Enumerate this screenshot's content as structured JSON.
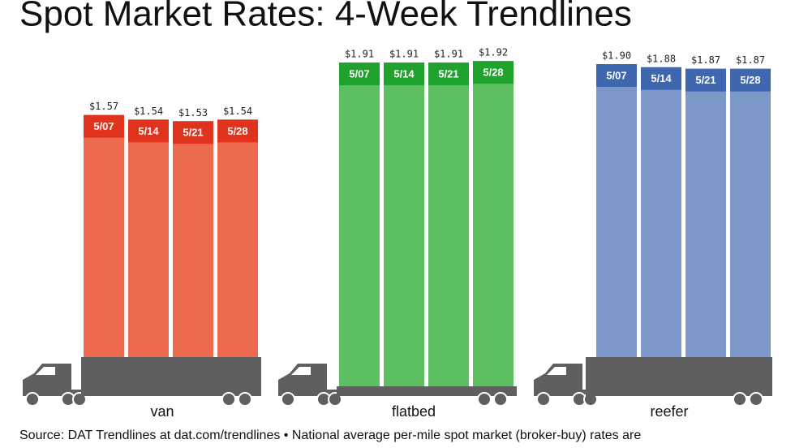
{
  "title": "Spot Market Rates: 4-Week Trendlines",
  "source": "Source: DAT Trendlines at dat.com/trendlines • National average per-mile spot market (broker-buy) rates are",
  "chart_data": [
    {
      "type": "bar",
      "title": "van",
      "categories": [
        "5/07",
        "5/14",
        "5/21",
        "5/28"
      ],
      "values": [
        1.57,
        1.54,
        1.53,
        1.54
      ],
      "value_labels": [
        "$1.57",
        "$1.54",
        "$1.53",
        "$1.54"
      ],
      "color": "#ec6a4e",
      "label_color": "#e0331d"
    },
    {
      "type": "bar",
      "title": "flatbed",
      "categories": [
        "5/07",
        "5/14",
        "5/21",
        "5/28"
      ],
      "values": [
        1.91,
        1.91,
        1.91,
        1.92
      ],
      "value_labels": [
        "$1.91",
        "$1.91",
        "$1.91",
        "$1.92"
      ],
      "color": "#5cbf62",
      "label_color": "#1fa22e"
    },
    {
      "type": "bar",
      "title": "reefer",
      "categories": [
        "5/07",
        "5/14",
        "5/21",
        "5/28"
      ],
      "values": [
        1.9,
        1.88,
        1.87,
        1.87
      ],
      "value_labels": [
        "$1.90",
        "$1.88",
        "$1.87",
        "$1.87"
      ],
      "color": "#7b98c9",
      "label_color": "#3f67b0"
    }
  ]
}
